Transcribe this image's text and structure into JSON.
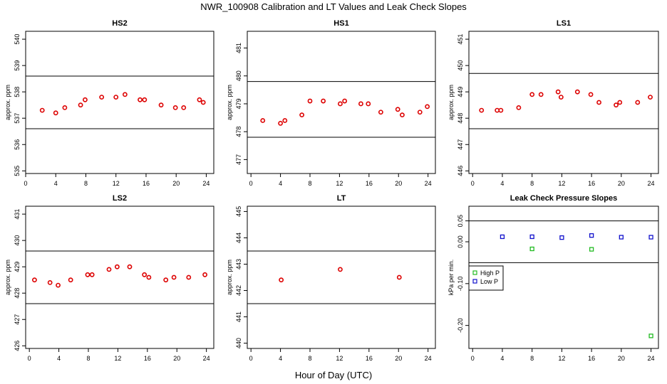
{
  "figure": {
    "title": "NWR_100908  Calibration and LT Values and Leak Check Slopes",
    "xlabel": "Hour of Day (UTC)"
  },
  "chart_data": [
    {
      "type": "scatter",
      "title": "HS2",
      "ylabel": "approx. ppm",
      "xlim": [
        0,
        25
      ],
      "ylim": [
        534.9,
        540.3
      ],
      "xticks": [
        0,
        4,
        8,
        12,
        16,
        20,
        24
      ],
      "yticks": [
        535,
        536,
        537,
        538,
        539,
        540
      ],
      "hlines": [
        538.6,
        536.6
      ],
      "series": [
        {
          "color": "#dd0000",
          "x": [
            2.2,
            4.0,
            5.2,
            7.3,
            7.9,
            10.1,
            12.0,
            13.2,
            15.2,
            15.8,
            18.0,
            19.9,
            21.0,
            23.1,
            23.6
          ],
          "y": [
            537.3,
            537.2,
            537.4,
            537.5,
            537.7,
            537.8,
            537.8,
            537.9,
            537.7,
            537.7,
            537.5,
            537.4,
            537.4,
            537.7,
            537.6
          ]
        }
      ]
    },
    {
      "type": "scatter",
      "title": "HS1",
      "ylabel": "approx. ppm",
      "xlim": [
        -0.5,
        25
      ],
      "ylim": [
        476.5,
        481.6
      ],
      "xticks": [
        0,
        4,
        8,
        12,
        16,
        20,
        24
      ],
      "yticks": [
        477,
        478,
        479,
        480,
        481
      ],
      "hlines": [
        479.8,
        477.8
      ],
      "series": [
        {
          "color": "#dd0000",
          "x": [
            1.6,
            4.0,
            4.6,
            6.9,
            8.0,
            9.8,
            12.1,
            12.7,
            14.9,
            15.9,
            17.6,
            19.9,
            20.5,
            22.9,
            23.9
          ],
          "y": [
            478.4,
            478.3,
            478.4,
            478.6,
            479.1,
            479.1,
            479.0,
            479.1,
            479.0,
            479.0,
            478.7,
            478.8,
            478.6,
            478.7,
            478.9
          ]
        }
      ]
    },
    {
      "type": "scatter",
      "title": "LS1",
      "ylabel": "approx. ppm",
      "xlim": [
        -0.5,
        25
      ],
      "ylim": [
        445.9,
        451.3
      ],
      "xticks": [
        0,
        4,
        8,
        12,
        16,
        20,
        24
      ],
      "yticks": [
        446,
        447,
        448,
        449,
        450,
        451
      ],
      "hlines": [
        449.7,
        447.6
      ],
      "series": [
        {
          "color": "#dd0000",
          "x": [
            1.2,
            3.3,
            3.8,
            6.2,
            8.0,
            9.2,
            11.5,
            11.9,
            14.1,
            15.9,
            17.0,
            19.3,
            19.8,
            22.2,
            23.9
          ],
          "y": [
            448.3,
            448.3,
            448.3,
            448.4,
            448.9,
            448.9,
            449.0,
            448.8,
            449.0,
            448.9,
            448.6,
            448.5,
            448.6,
            448.6,
            448.8
          ]
        }
      ]
    },
    {
      "type": "scatter",
      "title": "LS2",
      "ylabel": "approx. ppm",
      "xlim": [
        -0.5,
        25
      ],
      "ylim": [
        425.9,
        431.3
      ],
      "xticks": [
        0,
        4,
        8,
        12,
        16,
        20,
        24
      ],
      "yticks": [
        426,
        427,
        428,
        429,
        430,
        431
      ],
      "hlines": [
        429.6,
        427.6
      ],
      "series": [
        {
          "color": "#dd0000",
          "x": [
            0.7,
            2.8,
            3.9,
            5.6,
            7.9,
            8.5,
            10.8,
            11.9,
            13.6,
            15.6,
            16.2,
            18.5,
            19.6,
            21.6,
            23.8
          ],
          "y": [
            428.5,
            428.4,
            428.3,
            428.5,
            428.7,
            428.7,
            428.9,
            429.0,
            429.0,
            428.7,
            428.6,
            428.5,
            428.6,
            428.6,
            428.7
          ]
        }
      ]
    },
    {
      "type": "scatter",
      "title": "LT",
      "ylabel": "approx. ppm",
      "xlim": [
        -0.5,
        25
      ],
      "ylim": [
        439.8,
        445.2
      ],
      "xticks": [
        0,
        4,
        8,
        12,
        16,
        20,
        24
      ],
      "yticks": [
        440,
        441,
        442,
        443,
        444,
        445
      ],
      "hlines": [
        443.5,
        441.5
      ],
      "series": [
        {
          "color": "#dd0000",
          "x": [
            4.1,
            12.1,
            20.1
          ],
          "y": [
            442.4,
            442.8,
            442.5
          ]
        }
      ]
    },
    {
      "type": "scatter",
      "title": "Leak Check Pressure Slopes",
      "ylabel": "kPa per min.",
      "xlim": [
        -0.5,
        25
      ],
      "ylim": [
        -0.255,
        0.085
      ],
      "xticks": [
        0,
        4,
        8,
        12,
        16,
        20,
        24
      ],
      "yticks": [
        0.05,
        0.0,
        -0.1,
        -0.2
      ],
      "ytick_labels": [
        "0.05",
        "0.00",
        "-0.10",
        "-0.20"
      ],
      "hlines": [
        0.05,
        -0.05
      ],
      "legend": "center-left",
      "series": [
        {
          "name": "High P",
          "color": "#22bb22",
          "x": [
            8,
            16,
            24
          ],
          "y": [
            -0.017,
            -0.018,
            -0.225
          ]
        },
        {
          "name": "Low P",
          "color": "#1111cc",
          "x": [
            4,
            8,
            12,
            16,
            20,
            24
          ],
          "y": [
            0.012,
            0.012,
            0.01,
            0.015,
            0.011,
            0.011
          ]
        }
      ]
    }
  ]
}
